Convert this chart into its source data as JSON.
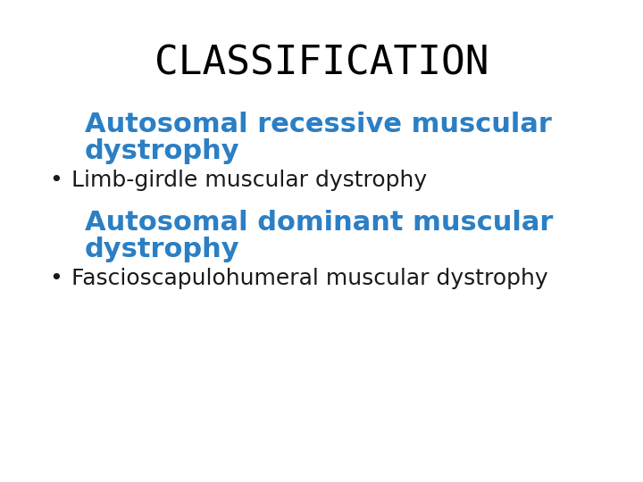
{
  "title": "CLASSIFICATION",
  "title_color": "#000000",
  "title_fontsize": 32,
  "background_color": "#ffffff",
  "blue_color": "#2b7fc4",
  "black_color": "#1a1a1a",
  "heading1_line1": "Autosomal recessive muscular",
  "heading1_line2": "dystrophy",
  "bullet1": "Limb-girdle muscular dystrophy",
  "heading2_line1": "Autosomal dominant muscular",
  "heading2_line2": "dystrophy",
  "bullet2": "Fascioscapulohumeral muscular dystrophy",
  "heading_fontsize": 22,
  "bullet_fontsize": 18,
  "bullet_symbol": "•"
}
